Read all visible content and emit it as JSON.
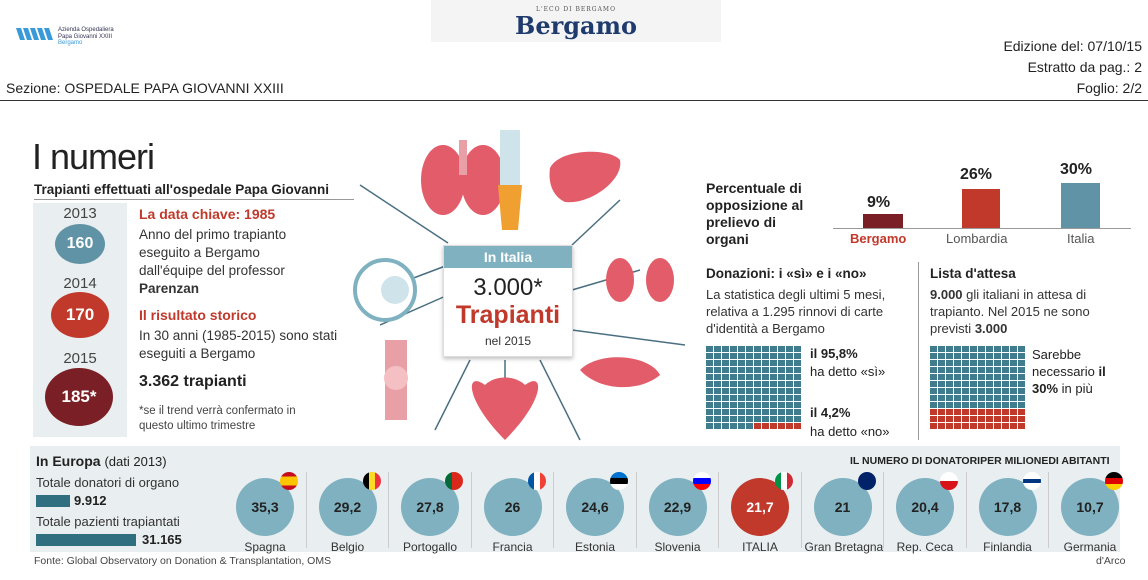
{
  "header": {
    "logo_lines": [
      "Azienda Ospedaliera",
      "Papa Giovanni XXIII",
      "Bergamo"
    ],
    "masthead_small": "L'ECO DI BERGAMO",
    "masthead": "Bergamo",
    "edition": "Edizione del: 07/10/15",
    "extract": "Estratto da pag.: 2",
    "sheet": "Foglio: 2/2",
    "section": "Sezione: OSPEDALE PAPA GIOVANNI XXIII"
  },
  "title": "I numeri",
  "subtitle": "Trapianti effettuati all'ospedale Papa Giovanni",
  "years": [
    {
      "year": "2013",
      "value": "160",
      "color": "#5f93a5"
    },
    {
      "year": "2014",
      "value": "170",
      "color": "#c0392b"
    },
    {
      "year": "2015",
      "value": "185*",
      "color": "#7a1f25"
    }
  ],
  "key_date": {
    "title": "La data chiave: 1985",
    "text": "Anno del primo trapianto eseguito a Bergamo dall'équipe del professor",
    "bold": "Parenzan"
  },
  "historic": {
    "title": "Il risultato storico",
    "text": "In 30 anni (1985-2015) sono stati eseguiti a Bergamo",
    "value": "3.362 trapianti",
    "note": "*se il trend verrà confermato in questo ultimo trimestre"
  },
  "center": {
    "cap": "In Italia",
    "num": "3.000*",
    "word": "Trapianti",
    "year": "nel 2015"
  },
  "opposition": {
    "title": "Percentuale di opposizione al prelievo di organi",
    "bars": [
      {
        "label": "Bergamo",
        "value": "9%",
        "color": "#7a1f25"
      },
      {
        "label": "Lombardia",
        "value": "26%",
        "color": "#c0392b"
      },
      {
        "label": "Italia",
        "value": "30%",
        "color": "#5f93a5"
      }
    ]
  },
  "donations": {
    "title": "Donazioni: i «sì» e i «no»",
    "text": "La statistica degli ultimi 5 mesi, relativa a 1.295 rinnovi di carte d'identità a Bergamo",
    "yes_pct": "il 95,8%",
    "yes_text": "ha detto «sì»",
    "no_pct": "il 4,2%",
    "no_text": "ha detto «no»"
  },
  "waiting": {
    "title": "Lista d'attesa",
    "text_bold": "9.000",
    "text": "gli italiani in attesa di trapianto. Nel 2015 ne sono previsti",
    "text_bold2": "3.000",
    "note": "Sarebbe necessario",
    "note_bold": "il 30%",
    "note_end": "in più"
  },
  "europe": {
    "title": "In Europa",
    "year": "(dati 2013)",
    "right_title": "IL NUMERO DI DONATORIPER MILIONEDI ABITANTI",
    "donors_label": "Totale donatori di organo",
    "donors_value": "9.912",
    "patients_label": "Totale pazienti trapiantati",
    "patients_value": "31.165",
    "countries": [
      {
        "name": "Spagna",
        "value": "35,3",
        "flag": "es"
      },
      {
        "name": "Belgio",
        "value": "29,2",
        "flag": "be"
      },
      {
        "name": "Portogallo",
        "value": "27,8",
        "flag": "pt"
      },
      {
        "name": "Francia",
        "value": "26",
        "flag": "fr"
      },
      {
        "name": "Estonia",
        "value": "24,6",
        "flag": "ee"
      },
      {
        "name": "Slovenia",
        "value": "22,9",
        "flag": "si"
      },
      {
        "name": "ITALIA",
        "value": "21,7",
        "flag": "it"
      },
      {
        "name": "Gran Bretagna",
        "value": "21",
        "flag": "gb"
      },
      {
        "name": "Rep. Ceca",
        "value": "20,4",
        "flag": "cz"
      },
      {
        "name": "Finlandia",
        "value": "17,8",
        "flag": "fi"
      },
      {
        "name": "Germania",
        "value": "10,7",
        "flag": "de"
      }
    ]
  },
  "footer": {
    "source": "Fonte: Global Observatory on Donation & Transplantation, OMS",
    "credit": "d'Arco"
  }
}
